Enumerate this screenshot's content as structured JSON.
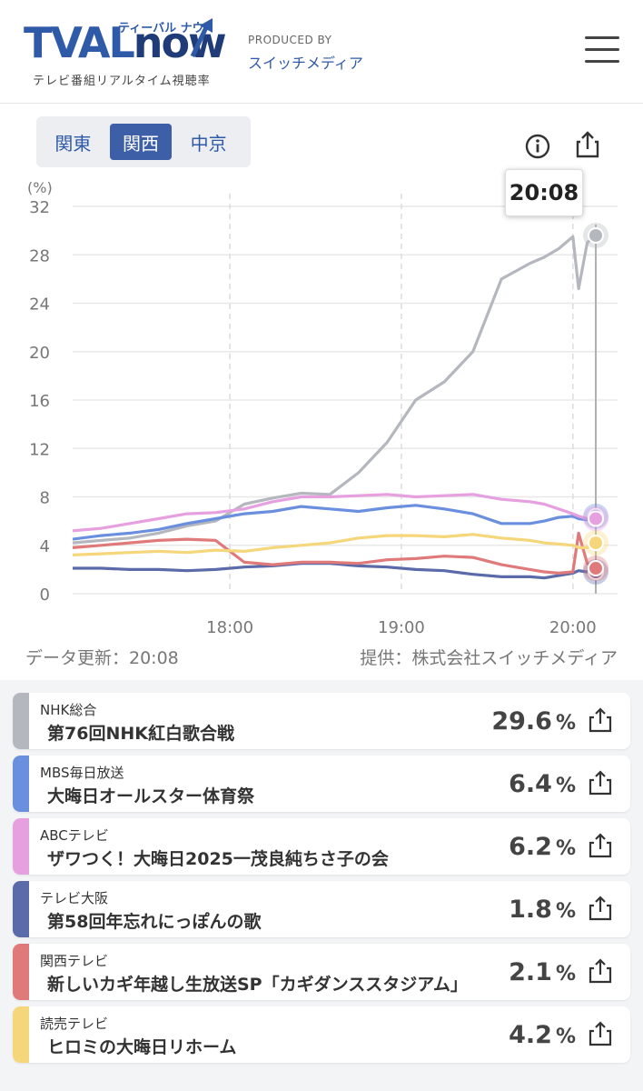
{
  "header": {
    "logo_word_a": "TVAL",
    "logo_word_b": "now",
    "logo_kana": "ティーバル ナウ",
    "logo_sub": "テレビ番組リアルタイム視聴率",
    "produced_by": "PRODUCED BY",
    "producer": "スイッチメディア",
    "menu_icon": "hamburger-menu-icon"
  },
  "regions": [
    {
      "label": "関東",
      "active": false
    },
    {
      "label": "関西",
      "active": true
    },
    {
      "label": "中京",
      "active": false
    }
  ],
  "toolbar": {
    "info_icon": "info-icon",
    "share_icon": "share-icon"
  },
  "tooltip": {
    "time": "20:08"
  },
  "chart_data": {
    "type": "line",
    "ylabel": "(%)",
    "ylim": [
      0,
      32
    ],
    "yticks": [
      "0",
      "4",
      "8",
      "12",
      "16",
      "20",
      "24",
      "28",
      "32"
    ],
    "xticks": [
      "18:00",
      "19:00",
      "20:00"
    ],
    "grid": true,
    "x_unit": "time",
    "x": [
      "17:05",
      "17:15",
      "17:25",
      "17:35",
      "17:45",
      "17:55",
      "18:05",
      "18:15",
      "18:25",
      "18:35",
      "18:45",
      "18:55",
      "19:05",
      "19:15",
      "19:25",
      "19:35",
      "19:45",
      "19:50",
      "19:55",
      "20:00",
      "20:02",
      "20:05",
      "20:08"
    ],
    "series": [
      {
        "color": "#b4b7bd",
        "values": [
          4.2,
          4.4,
          4.6,
          5.0,
          5.6,
          6.0,
          7.4,
          7.9,
          8.3,
          8.2,
          10.0,
          12.5,
          16.0,
          17.5,
          20.0,
          26.0,
          27.3,
          27.8,
          28.5,
          29.5,
          25.2,
          29.0,
          29.6
        ]
      },
      {
        "color": "#6a8fdf",
        "values": [
          4.5,
          4.8,
          5.0,
          5.3,
          5.8,
          6.2,
          6.6,
          6.8,
          7.2,
          7.0,
          6.8,
          7.1,
          7.3,
          7.0,
          6.6,
          5.8,
          5.8,
          6.0,
          6.3,
          6.4,
          6.2,
          6.1,
          6.4
        ]
      },
      {
        "color": "#e6a0e0",
        "values": [
          5.2,
          5.4,
          5.8,
          6.2,
          6.6,
          6.7,
          7.0,
          7.6,
          8.0,
          8.0,
          8.1,
          8.2,
          8.0,
          8.1,
          8.2,
          7.8,
          7.6,
          7.4,
          7.0,
          6.6,
          6.4,
          6.2,
          6.2
        ]
      },
      {
        "color": "#5b6aa8",
        "values": [
          2.1,
          2.1,
          2.0,
          2.0,
          1.9,
          2.0,
          2.2,
          2.3,
          2.5,
          2.5,
          2.3,
          2.2,
          2.0,
          1.9,
          1.6,
          1.4,
          1.4,
          1.3,
          1.5,
          1.7,
          1.9,
          1.8,
          1.8
        ]
      },
      {
        "color": "#e07a7a",
        "values": [
          3.8,
          4.0,
          4.2,
          4.4,
          4.5,
          4.4,
          2.6,
          2.4,
          2.6,
          2.6,
          2.5,
          2.8,
          2.9,
          3.1,
          3.0,
          2.4,
          2.0,
          1.8,
          1.7,
          1.8,
          5.0,
          2.5,
          2.1
        ]
      },
      {
        "color": "#f5d67a",
        "values": [
          3.2,
          3.3,
          3.4,
          3.5,
          3.4,
          3.6,
          3.5,
          3.8,
          4.0,
          4.2,
          4.6,
          4.8,
          4.8,
          4.7,
          4.9,
          4.6,
          4.4,
          4.2,
          4.1,
          4.0,
          3.8,
          3.8,
          4.2
        ]
      }
    ]
  },
  "footer": {
    "updated": "データ更新：20:08",
    "provider": "提供：株式会社スイッチメディア"
  },
  "programs": [
    {
      "station": "NHK総合",
      "title": "第76回NHK紅白歌合戦",
      "rating": "29.6",
      "unit": "%",
      "color": "#b4b7bd"
    },
    {
      "station": "MBS毎日放送",
      "title": "大晦日オールスター体育祭",
      "rating": "6.4",
      "unit": "%",
      "color": "#6a8fdf"
    },
    {
      "station": "ABCテレビ",
      "title": "ザワつく！大晦日2025一茂良純ちさ子の会",
      "rating": "6.2",
      "unit": "%",
      "color": "#e6a0e0"
    },
    {
      "station": "テレビ大阪",
      "title": "第58回年忘れにっぽんの歌",
      "rating": "1.8",
      "unit": "%",
      "color": "#5b6aa8"
    },
    {
      "station": "関西テレビ",
      "title": "新しいカギ年越し生放送SP「カギダンススタジアム」",
      "rating": "2.1",
      "unit": "%",
      "color": "#e07a7a"
    },
    {
      "station": "読売テレビ",
      "title": "ヒロミの大晦日リホーム",
      "rating": "4.2",
      "unit": "%",
      "color": "#f5d67a"
    }
  ]
}
